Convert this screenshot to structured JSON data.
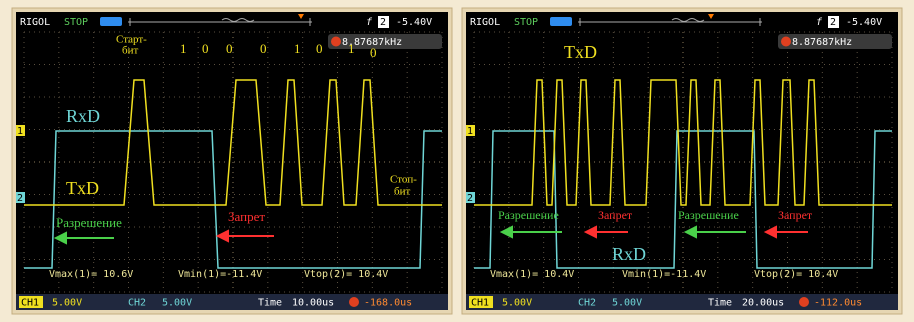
{
  "screens": [
    {
      "brand": "RIGOL",
      "status": "STOP",
      "trigger_source": "2",
      "trigger_level": "-5.40V",
      "trigger_slope": "f",
      "frequency": "8.87687kHz",
      "channel_markers": [
        "1",
        "2"
      ],
      "annotations": {
        "start_bit": [
          "Старт-",
          "бит"
        ],
        "bits": [
          "1",
          "0",
          "0",
          "0",
          "1",
          "0",
          "1",
          "0"
        ],
        "rxd": "RxD",
        "txd": "TxD",
        "stop_bit": [
          "Стоп-",
          "бит"
        ],
        "enable": "Разрешение",
        "disable": "Запрет"
      },
      "measurements": [
        "Vmax(1)= 10.6V",
        "Vmin(1)=-11.4V",
        "Vtop(2)= 10.4V"
      ],
      "footer": {
        "ch1": "CH1",
        "ch1_scale": "5.00V",
        "ch2": "CH2",
        "ch2_scale": "5.00V",
        "time": "Time",
        "time_scale": "10.00us",
        "trigger_offset": "-168.0us"
      }
    },
    {
      "brand": "RIGOL",
      "status": "STOP",
      "trigger_source": "2",
      "trigger_level": "-5.40V",
      "trigger_slope": "f",
      "frequency": "8.87687kHz",
      "channel_markers": [
        "1",
        "2"
      ],
      "annotations": {
        "txd": "TxD",
        "enable_1": "Разрешение",
        "disable_1": "Запрет",
        "enable_2": "Разрешение",
        "disable_2": "Запрет",
        "rxd": "RxD"
      },
      "measurements": [
        "Vmax(1)= 10.4V",
        "Vmin(1)=-11.4V",
        "Vtop(2)= 10.4V"
      ],
      "footer": {
        "ch1": "CH1",
        "ch1_scale": "5.00V",
        "ch2": "CH2",
        "ch2_scale": "5.00V",
        "time": "Time",
        "time_scale": "20.00us",
        "trigger_offset": "-112.0us"
      }
    }
  ]
}
